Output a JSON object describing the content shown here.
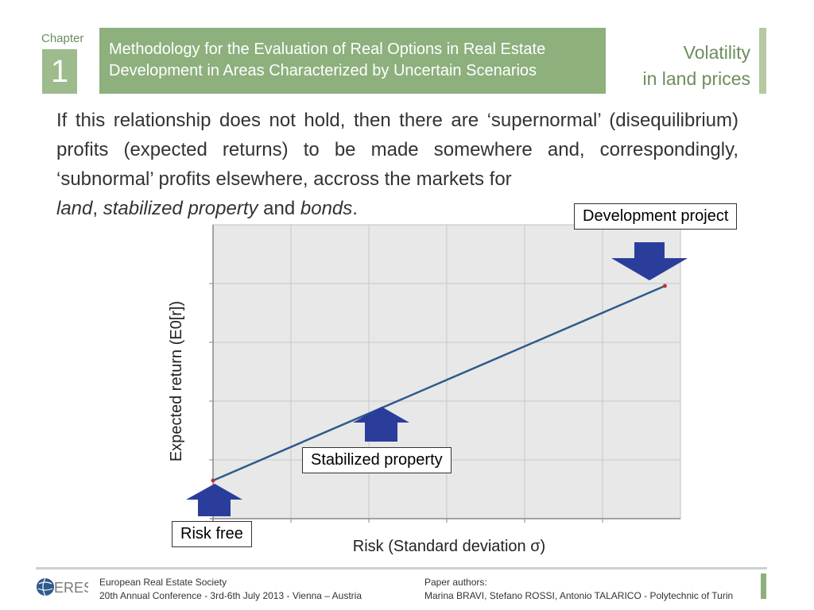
{
  "header": {
    "chapter_label": "Chapter",
    "chapter_number": "1",
    "title_line1": "Methodology for the Evaluation of Real Options in Real Estate",
    "title_line2": "Development in Areas Characterized by Uncertain Scenarios",
    "section_line1": "Volatility",
    "section_line2": "in land prices"
  },
  "body": {
    "paragraph_main": "If this relationship does not hold, then there are ‘supernormal’ (disequilibrium) profits (expected returns) to be made somewhere and, correspondingly, ‘subnormal’ profits elsewhere, accross the markets for",
    "word_land": "land",
    "sep1": ", ",
    "word_stabilized": "stabilized property",
    "sep2": " and ",
    "word_bonds": "bonds",
    "end": "."
  },
  "chart_data": {
    "type": "line",
    "xlabel": "Risk (Standard deviation σ)",
    "ylabel": "Expected return (E0[r])",
    "grid": true,
    "series": [
      {
        "x": [
          0,
          5.8
        ],
        "y": [
          0,
          3.4
        ]
      }
    ],
    "annotations": [
      "Risk free",
      "Stabilized property",
      "Development project"
    ],
    "colors": {
      "line": "#2e5a8c",
      "arrow": "#2b3d9b",
      "plot_bg": "#e8e8e8"
    }
  },
  "footer": {
    "logo_text": "ERES",
    "org": "European Real Estate Society",
    "conference": "20th Annual Conference - 3rd-6th July 2013 - Vienna – Austria",
    "authors_label": "Paper authors:",
    "authors": "Marina BRAVI, Stefano ROSSI, Antonio TALARICO - Polytechnic of Turin"
  }
}
